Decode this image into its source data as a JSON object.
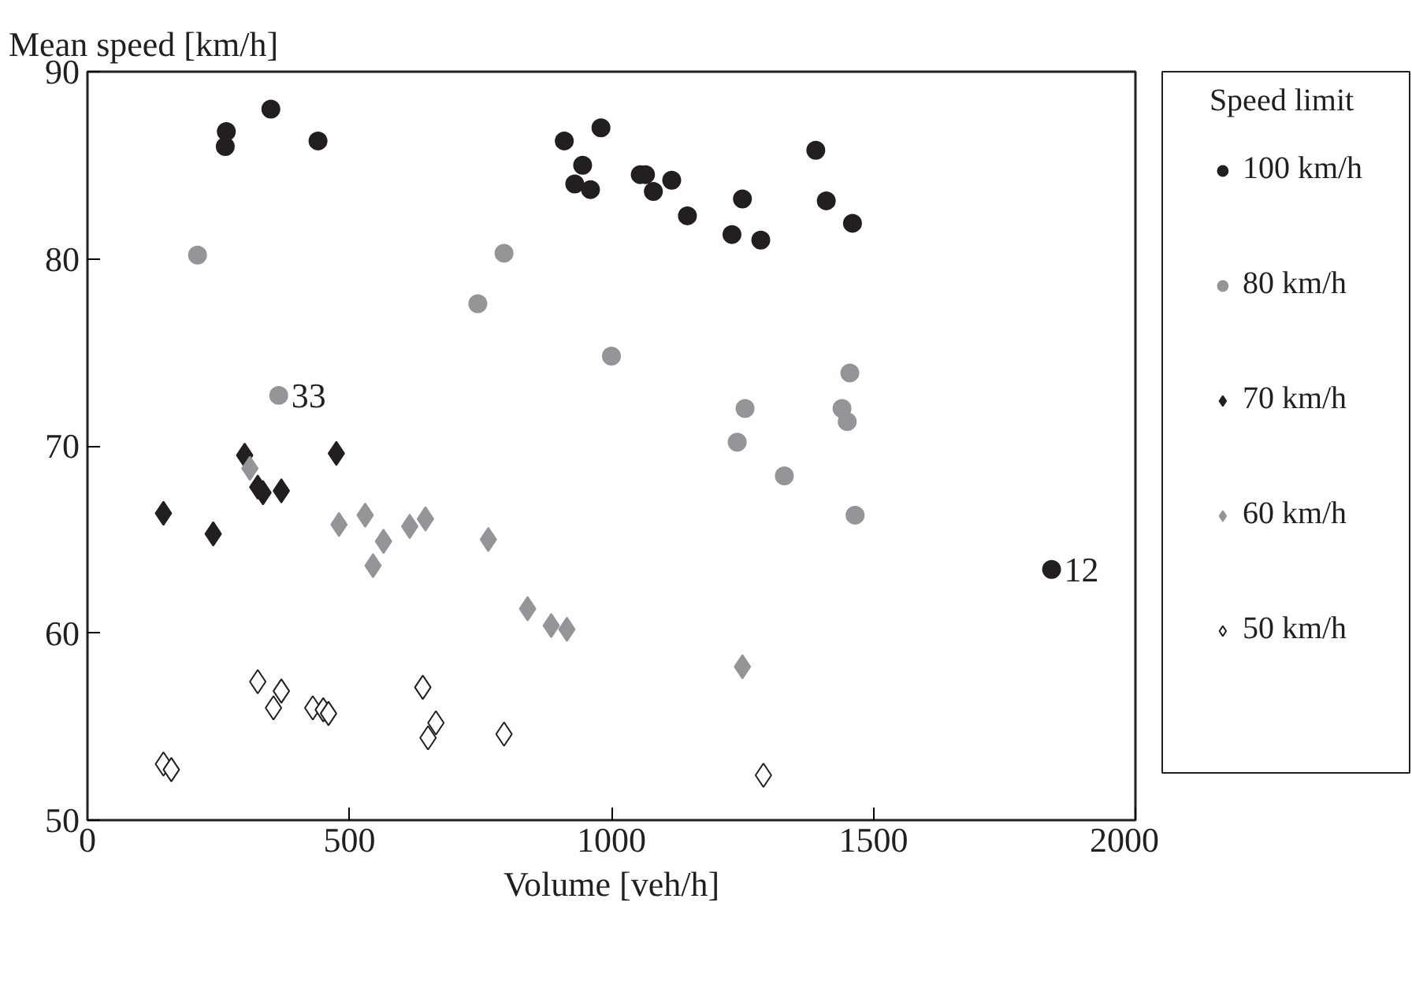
{
  "chart_data": {
    "type": "scatter",
    "xlabel": "Volume [veh/h]",
    "ylabel": "Mean speed [km/h]",
    "legend_title": "Speed limit",
    "legend": "right",
    "grid": false,
    "xlim": [
      0,
      2000
    ],
    "xticks": [
      0,
      500,
      1000,
      1500,
      2000
    ],
    "ylim": [
      50,
      90
    ],
    "yticks": [
      50,
      60,
      70,
      80,
      90
    ],
    "series": [
      {
        "name": "100 km/h",
        "color": "#231f20",
        "marker": "circle",
        "x": [
          263,
          265,
          350,
          440,
          910,
          930,
          945,
          960,
          980,
          1055,
          1065,
          1080,
          1115,
          1145,
          1230,
          1250,
          1285,
          1390,
          1410,
          1460,
          1840
        ],
        "values": [
          86.0,
          86.8,
          88.0,
          86.3,
          86.3,
          84.0,
          85.0,
          83.7,
          87.0,
          84.5,
          84.5,
          83.6,
          84.2,
          82.3,
          81.3,
          83.2,
          81.0,
          85.8,
          83.1,
          81.9,
          63.4
        ]
      },
      {
        "name": "80 km/h",
        "color": "#939598",
        "marker": "circle",
        "x": [
          210,
          365,
          745,
          795,
          1000,
          1240,
          1255,
          1330,
          1440,
          1450,
          1455,
          1465
        ],
        "values": [
          80.2,
          72.7,
          77.6,
          80.3,
          74.8,
          70.2,
          72.0,
          68.4,
          72.0,
          71.3,
          73.9,
          66.3
        ]
      },
      {
        "name": "70 km/h",
        "color": "#231f20",
        "marker": "diamond",
        "x": [
          145,
          240,
          300,
          325,
          335,
          370,
          475
        ],
        "values": [
          66.4,
          65.3,
          69.5,
          67.8,
          67.5,
          67.6,
          69.6
        ]
      },
      {
        "name": "60 km/h",
        "color": "#939598",
        "marker": "diamond",
        "x": [
          310,
          480,
          530,
          545,
          565,
          615,
          645,
          765,
          840,
          885,
          915,
          1250
        ],
        "values": [
          68.8,
          65.8,
          66.3,
          63.6,
          64.9,
          65.7,
          66.1,
          65.0,
          61.3,
          60.4,
          60.2,
          58.2
        ]
      },
      {
        "name": "50 km/h",
        "color": "#ffffff",
        "marker": "diamond",
        "x": [
          145,
          160,
          325,
          355,
          370,
          430,
          450,
          460,
          640,
          650,
          665,
          795,
          1290
        ],
        "values": [
          53.0,
          52.7,
          57.4,
          56.0,
          56.9,
          56.0,
          55.9,
          55.7,
          57.1,
          54.4,
          55.2,
          54.6,
          52.4
        ]
      }
    ],
    "annotations": [
      {
        "text": "33",
        "x": 365,
        "y": 72.7
      },
      {
        "text": "12",
        "x": 1840,
        "y": 63.4
      }
    ]
  }
}
